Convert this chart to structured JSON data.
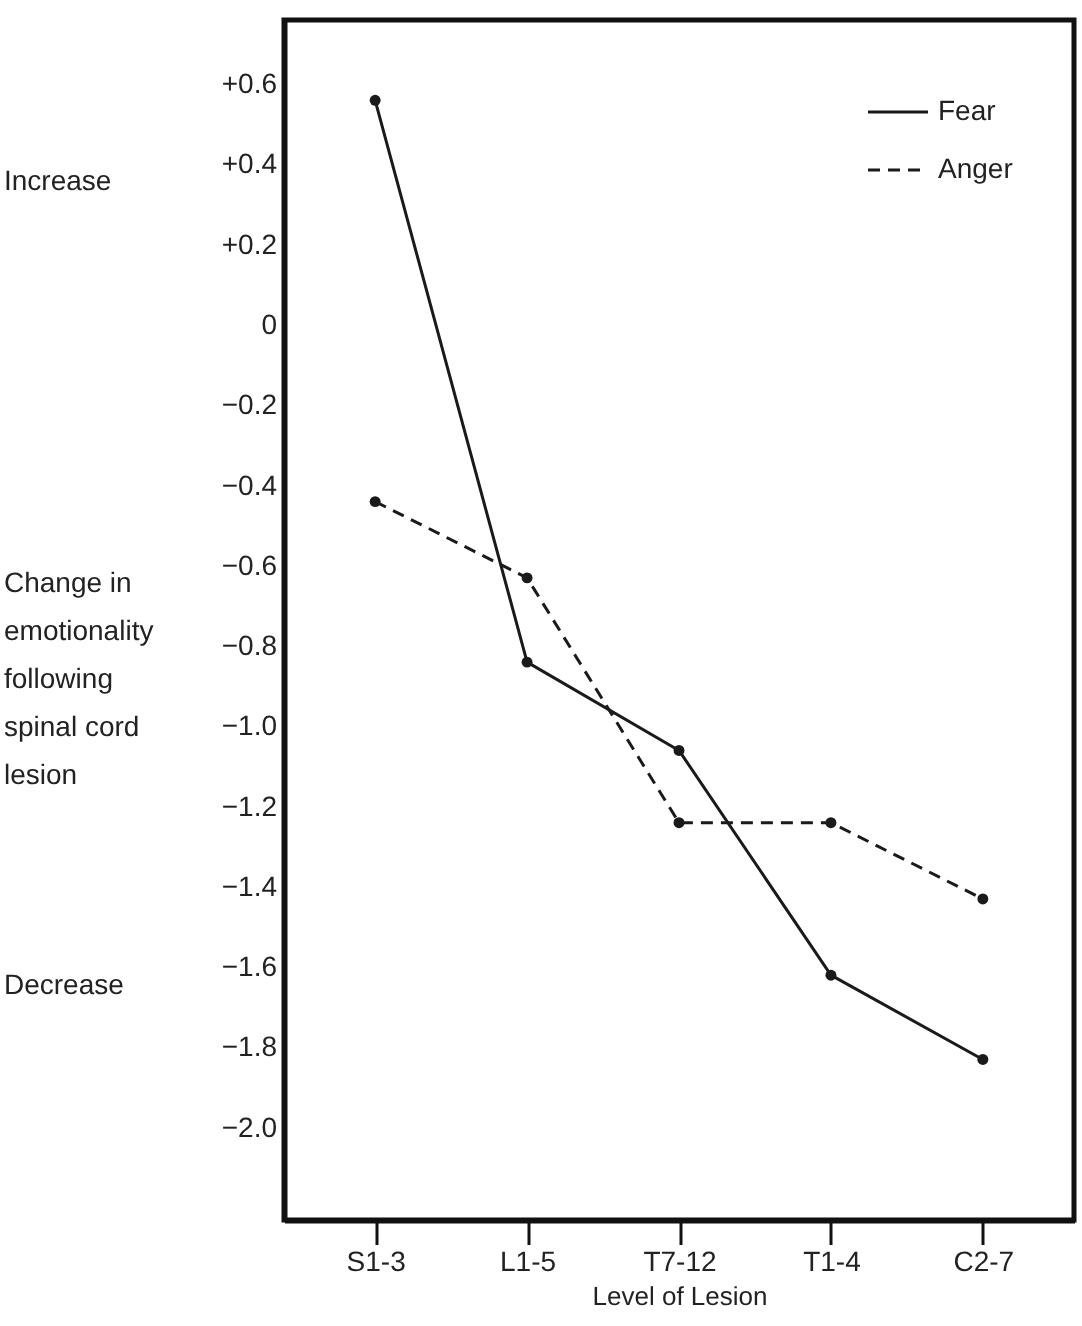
{
  "chart_data": {
    "type": "line",
    "xlabel": "Level of Lesion",
    "ylabel": "Change in emotionality following spinal cord lesion",
    "annotations": [
      "Increase",
      "Decrease"
    ],
    "categories": [
      "S1-3",
      "L1-5",
      "T7-12",
      "T1-4",
      "C2-7"
    ],
    "series": [
      {
        "name": "Fear",
        "color": "#1a1a1a",
        "line_style": "solid",
        "values": [
          0.56,
          -0.84,
          -1.06,
          -1.62,
          -1.83
        ]
      },
      {
        "name": "Anger",
        "color": "#1a1a1a",
        "line_style": "dashed",
        "values": [
          -0.44,
          -0.63,
          -1.24,
          -1.24,
          -1.43
        ]
      }
    ],
    "ylim": [
      -2.23,
      0.76
    ],
    "yticks": [
      {
        "value": 0.6,
        "label": "+0.6"
      },
      {
        "value": 0.4,
        "label": "+0.4"
      },
      {
        "value": 0.2,
        "label": "+0.2"
      },
      {
        "value": 0,
        "label": "0"
      },
      {
        "value": -0.2,
        "label": "−0.2"
      },
      {
        "value": -0.4,
        "label": "−0.4"
      },
      {
        "value": -0.6,
        "label": "−0.6"
      },
      {
        "value": -0.8,
        "label": "−0.8"
      },
      {
        "value": -1.0,
        "label": "−1.0"
      },
      {
        "value": -1.2,
        "label": "−1.2"
      },
      {
        "value": -1.4,
        "label": "−1.4"
      },
      {
        "value": -1.6,
        "label": "−1.6"
      },
      {
        "value": -1.8,
        "label": "−1.8"
      },
      {
        "value": -2.0,
        "label": "−2.0"
      }
    ],
    "marker": "circle",
    "legend": "top right",
    "grid": false
  }
}
